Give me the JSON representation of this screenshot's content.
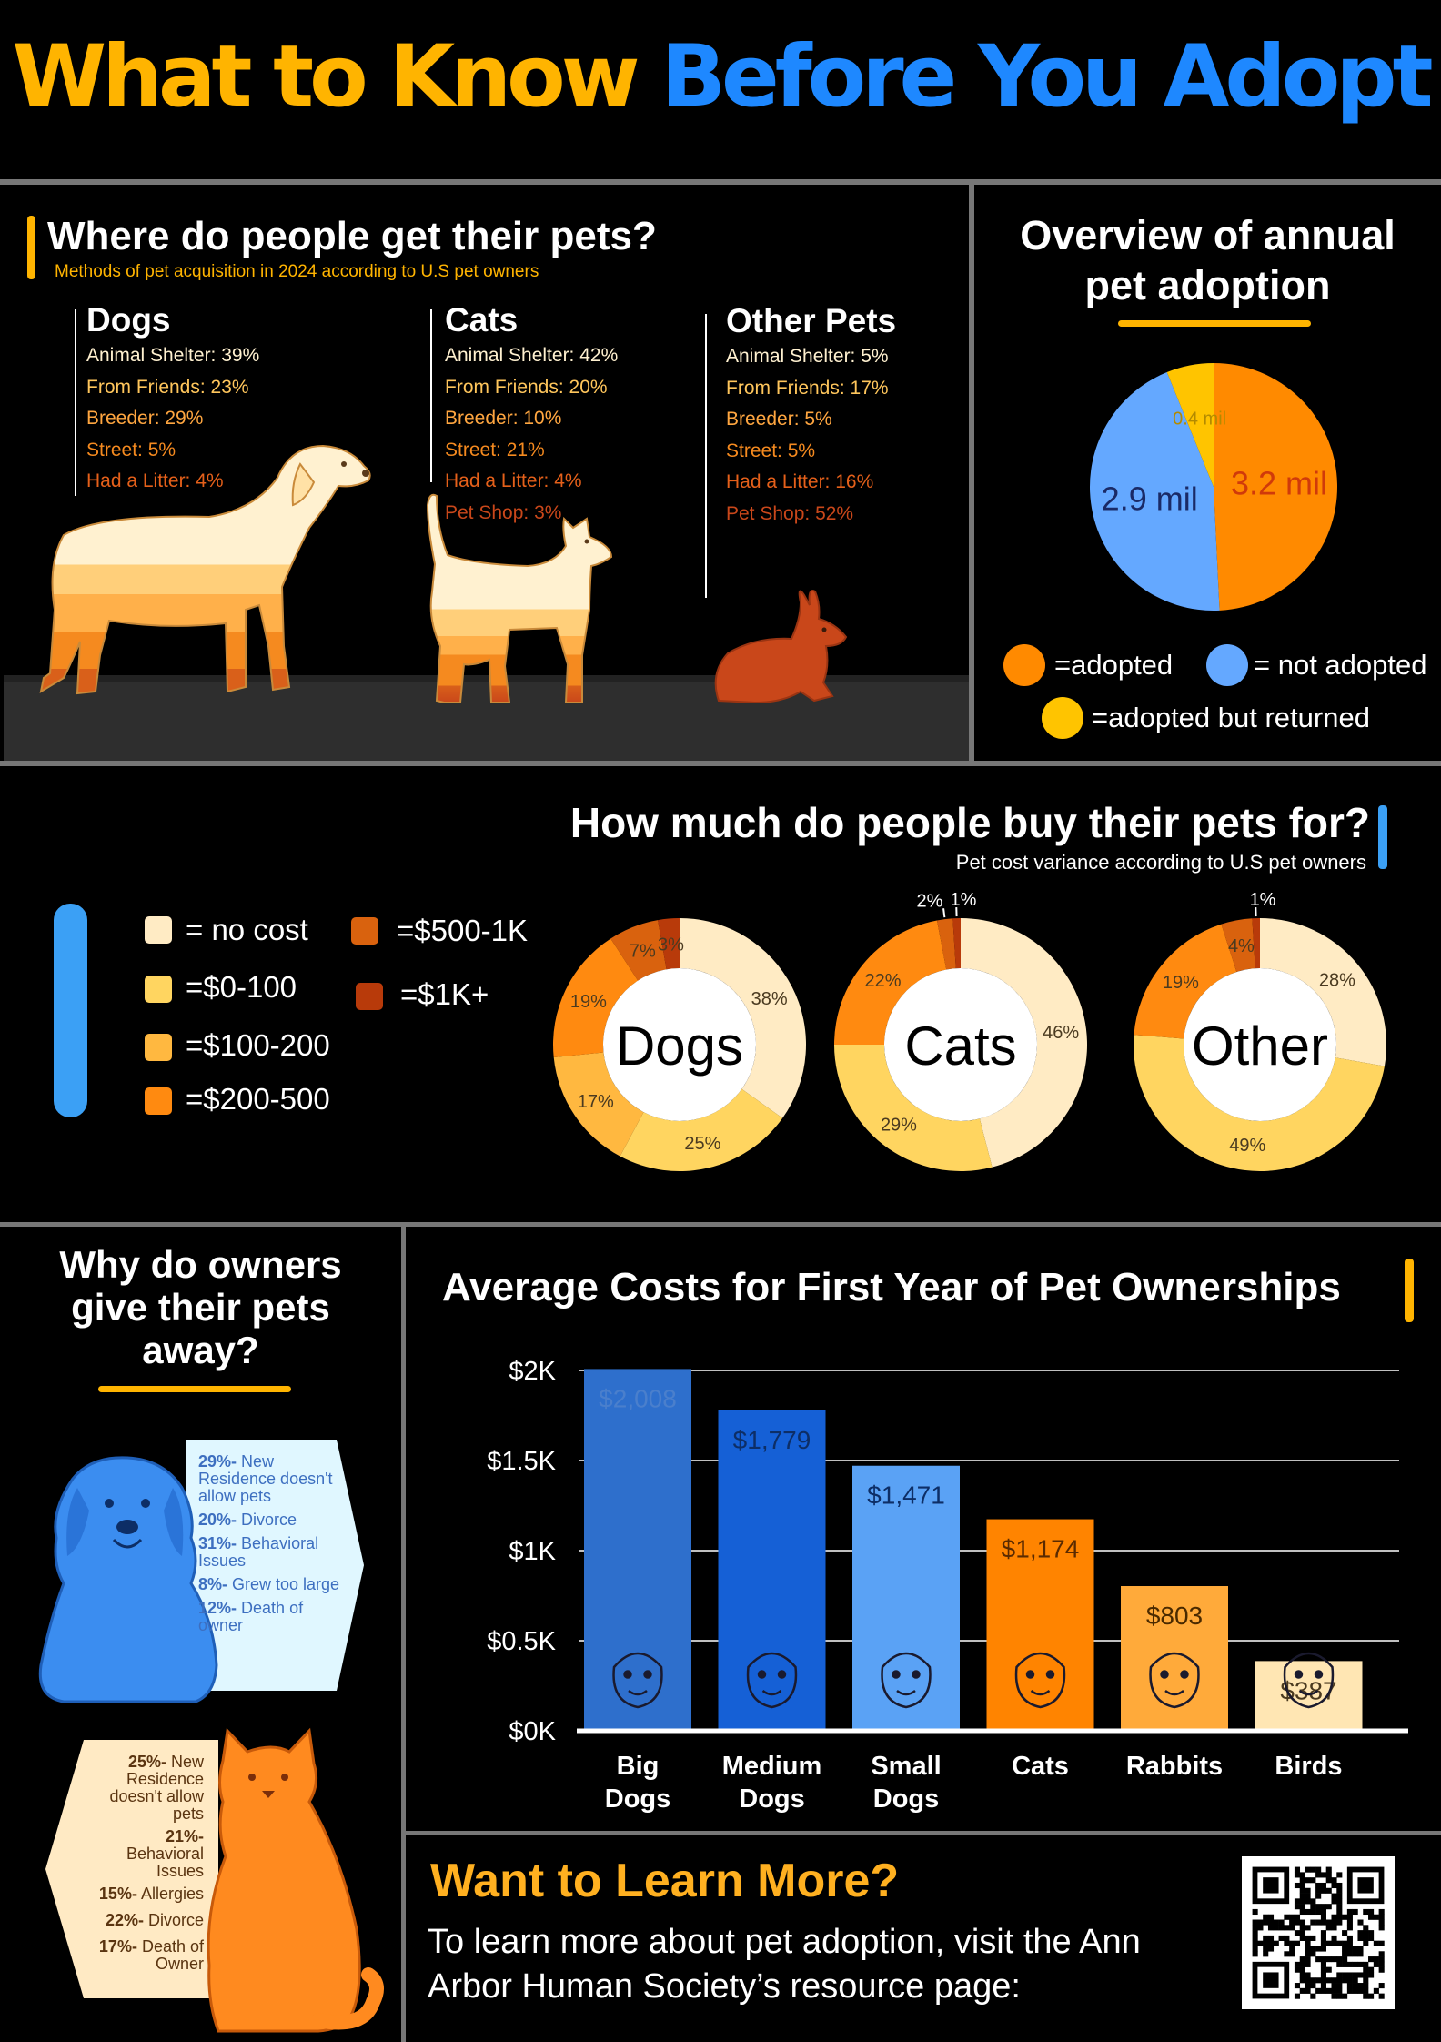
{
  "title": {
    "part1": "What to Know",
    "part2": "Before You Adopt"
  },
  "sources": {
    "heading": "Where do people get their pets?",
    "subheading": "Methods of pet acquisition in 2024 according to U.S pet owners",
    "columns": [
      {
        "name": "Dogs",
        "rows": [
          "Animal Shelter: 39%",
          "From Friends: 23%",
          "Breeder: 29%",
          "Street: 5%",
          "Had a Litter: 4%"
        ]
      },
      {
        "name": "Cats",
        "rows": [
          "Animal Shelter: 42%",
          "From Friends: 20%",
          "Breeder: 10%",
          "Street: 21%",
          "Had a Litter: 4%",
          "Pet Shop: 3%"
        ]
      },
      {
        "name": "Other Pets",
        "rows": [
          "Animal Shelter: 5%",
          "From Friends: 17%",
          "Breeder: 5%",
          "Street: 5%",
          "Had a Litter: 16%",
          "Pet Shop: 52%"
        ]
      }
    ],
    "row_colors": [
      "#FFF1D0",
      "#FFC65C",
      "#FFA640",
      "#F58A1F",
      "#E5601A",
      "#C9471A"
    ]
  },
  "overview": {
    "heading_line1": "Overview of annual",
    "heading_line2": "pet adoption",
    "legend": [
      "=adopted",
      "= not adopted",
      "=adopted but returned"
    ]
  },
  "cost": {
    "heading": "How much do people buy their pets for?",
    "subheading": "Pet cost variance according to U.S pet owners",
    "legend": [
      "= no cost",
      "=$0-100",
      "=$100-200",
      "=$200-500",
      "=$500-1K",
      "=$1K+"
    ],
    "colors": [
      "#FFEBC4",
      "#FFD560",
      "#FFB840",
      "#FF8A10",
      "#D9620E",
      "#B83A0A"
    ]
  },
  "giveaway": {
    "heading_line1": "Why do owners",
    "heading_line2": "give their pets",
    "heading_line3": "away?",
    "dogs": [
      {
        "pct": "29%-",
        "text": " New Residence doesn't allow pets"
      },
      {
        "pct": "20%-",
        "text": " Divorce"
      },
      {
        "pct": "31%-",
        "text": " Behavioral Issues"
      },
      {
        "pct": "8%-",
        "text": " Grew too large"
      },
      {
        "pct": "12%-",
        "text": " Death of owner"
      }
    ],
    "cats": [
      {
        "pct": "25%-",
        "text": " New Residence doesn't allow pets"
      },
      {
        "pct": "21%-",
        "text": " Behavioral Issues"
      },
      {
        "pct": "15%-",
        "text": " Allergies"
      },
      {
        "pct": "22%-",
        "text": " Divorce"
      },
      {
        "pct": "17%-",
        "text": " Death of Owner"
      }
    ]
  },
  "learn": {
    "heading": "Want to Learn More?",
    "body": "To learn more about pet adoption, visit the Ann Arbor Human Society’s resource page:"
  },
  "chart_data": [
    {
      "type": "pie",
      "title": "Overview of annual pet adoption",
      "labels": [
        "adopted",
        "not adopted",
        "adopted but returned"
      ],
      "values": [
        3.2,
        2.9,
        0.4
      ],
      "value_labels": [
        "3.2 mil",
        "2.9 mil",
        "0.4 mil"
      ],
      "colors": [
        "#FF8A00",
        "#64A8FF",
        "#FFC400"
      ]
    },
    {
      "type": "pie",
      "title": "How much do people buy their pets for?",
      "categories": [
        "no cost",
        "$0-100",
        "$100-200",
        "$200-500",
        "$500-1K",
        "$1K+"
      ],
      "series": [
        {
          "name": "Dogs",
          "values": [
            38,
            25,
            17,
            19,
            7,
            3
          ]
        },
        {
          "name": "Cats",
          "values": [
            46,
            29,
            0,
            22,
            2,
            1
          ]
        },
        {
          "name": "Other",
          "values": [
            28,
            49,
            0,
            19,
            4,
            1
          ]
        }
      ]
    },
    {
      "type": "bar",
      "title": "Average Costs for First Year of Pet Ownerships",
      "categories": [
        "Big Dogs",
        "Medium Dogs",
        "Small Dogs",
        "Cats",
        "Rabbits",
        "Birds"
      ],
      "values": [
        2008,
        1779,
        1471,
        1174,
        803,
        387
      ],
      "value_labels": [
        "$2,008",
        "$1,779",
        "$1,471",
        "$1,174",
        "$803",
        "$387"
      ],
      "yticks": [
        "$0K",
        "$0.5K",
        "$1K",
        "$1.5K",
        "$2K"
      ],
      "ylim": [
        0,
        2000
      ],
      "colors": [
        "#2E6FCC",
        "#1560D6",
        "#5AA2F5",
        "#FF8400",
        "#FFAA3A",
        "#FFE6B3"
      ],
      "grid": true
    }
  ]
}
